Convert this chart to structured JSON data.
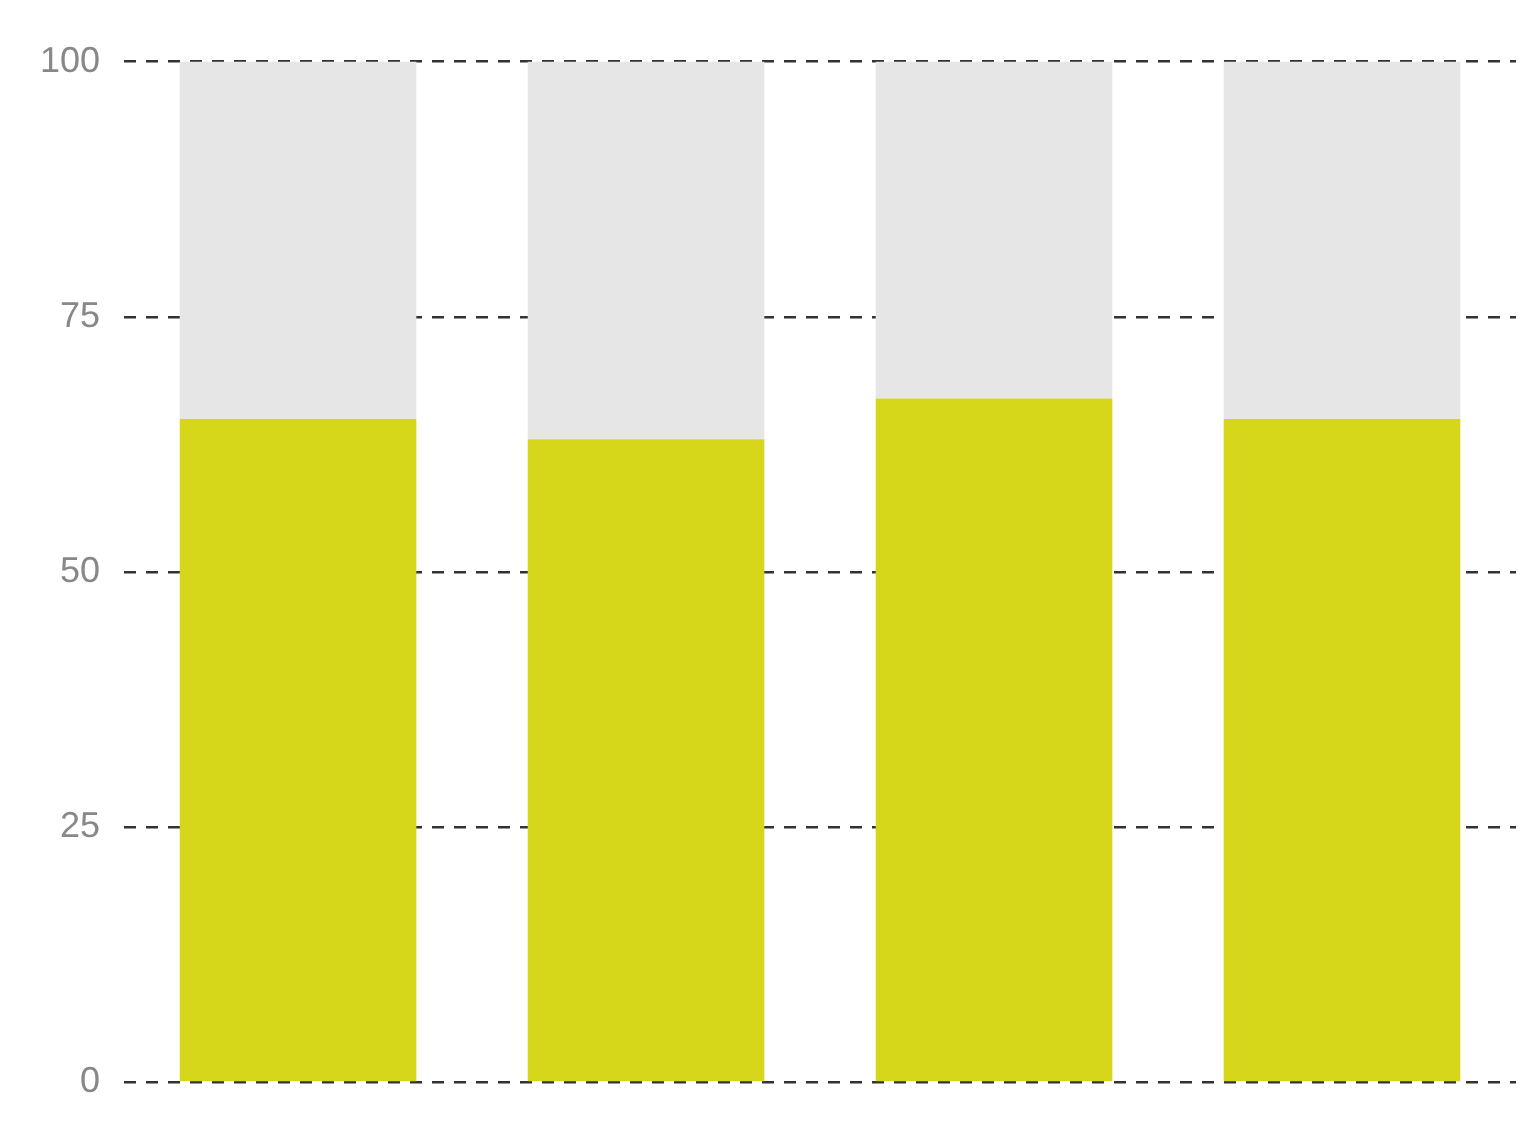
{
  "chart_data": {
    "type": "bar",
    "stacked": true,
    "categories": [
      null,
      null,
      null,
      null
    ],
    "series": [
      {
        "color": "#d6d61a",
        "values": [
          65,
          63,
          67,
          65
        ]
      },
      {
        "color": "#e6e6e6",
        "values": [
          35,
          37,
          33,
          35
        ]
      }
    ],
    "ylim": [
      0,
      100
    ],
    "yticks": [
      0,
      25,
      50,
      75,
      100
    ],
    "grid": "y",
    "line_style": "dashed",
    "legend": false
  }
}
